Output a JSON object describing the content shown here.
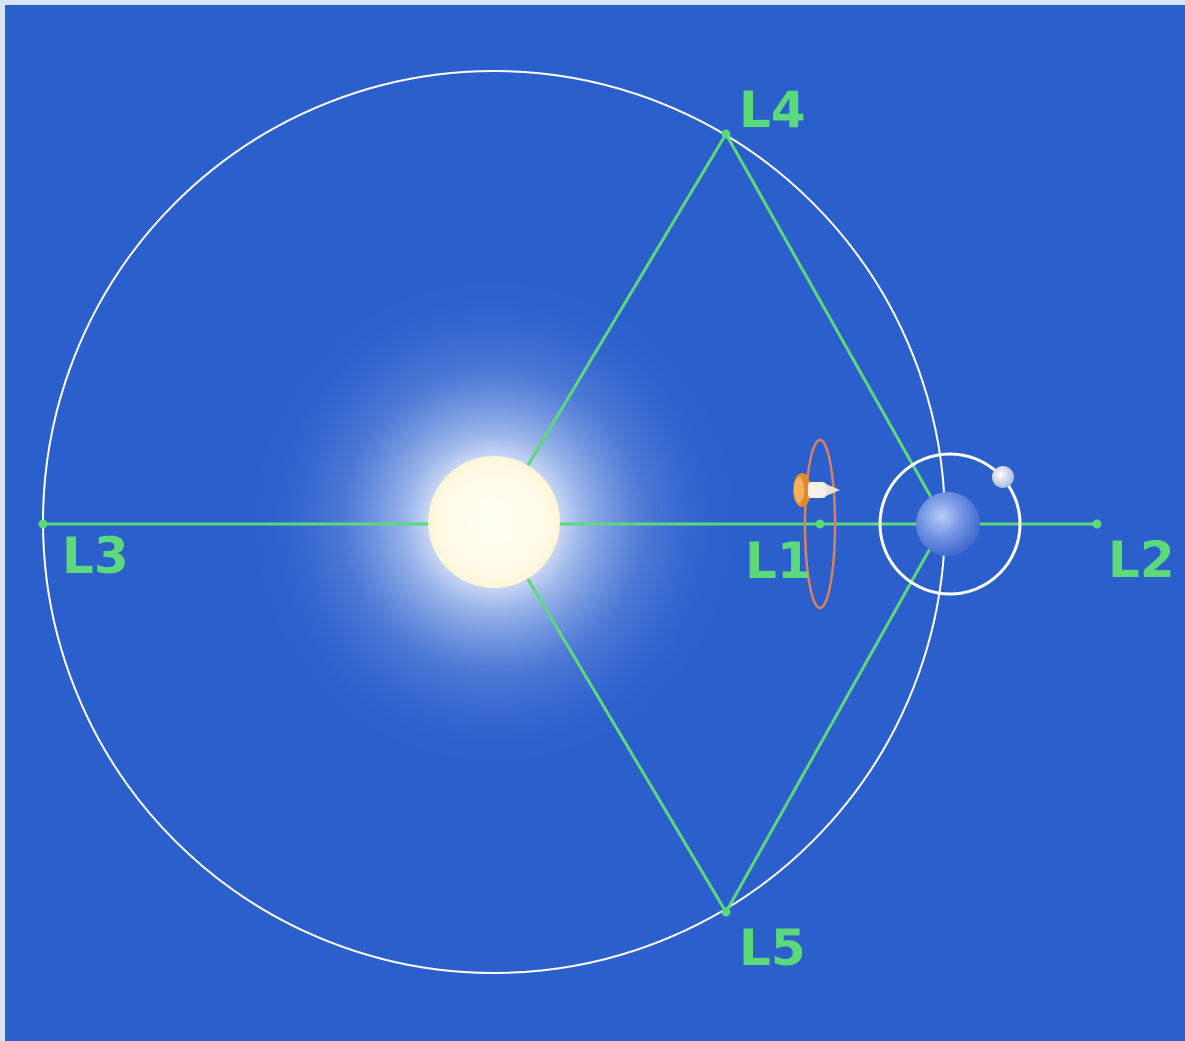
{
  "diagram": {
    "points": [
      {
        "id": "L1",
        "label": "L1"
      },
      {
        "id": "L2",
        "label": "L2"
      },
      {
        "id": "L3",
        "label": "L3"
      },
      {
        "id": "L4",
        "label": "L4"
      },
      {
        "id": "L5",
        "label": "L5"
      }
    ],
    "bodies": [
      {
        "id": "sun",
        "icon": "sun-icon"
      },
      {
        "id": "earth",
        "icon": "earth-icon"
      },
      {
        "id": "moon",
        "icon": "moon-icon"
      },
      {
        "id": "spacecraft",
        "icon": "spacecraft-icon"
      }
    ],
    "colors": {
      "background": "#2b5fcc",
      "frame": "#d7e6f4",
      "lines": "#5cd97a",
      "labels": "#5cd97a",
      "orbit": "#ffffff",
      "halo_orbit": "#d98060"
    }
  }
}
